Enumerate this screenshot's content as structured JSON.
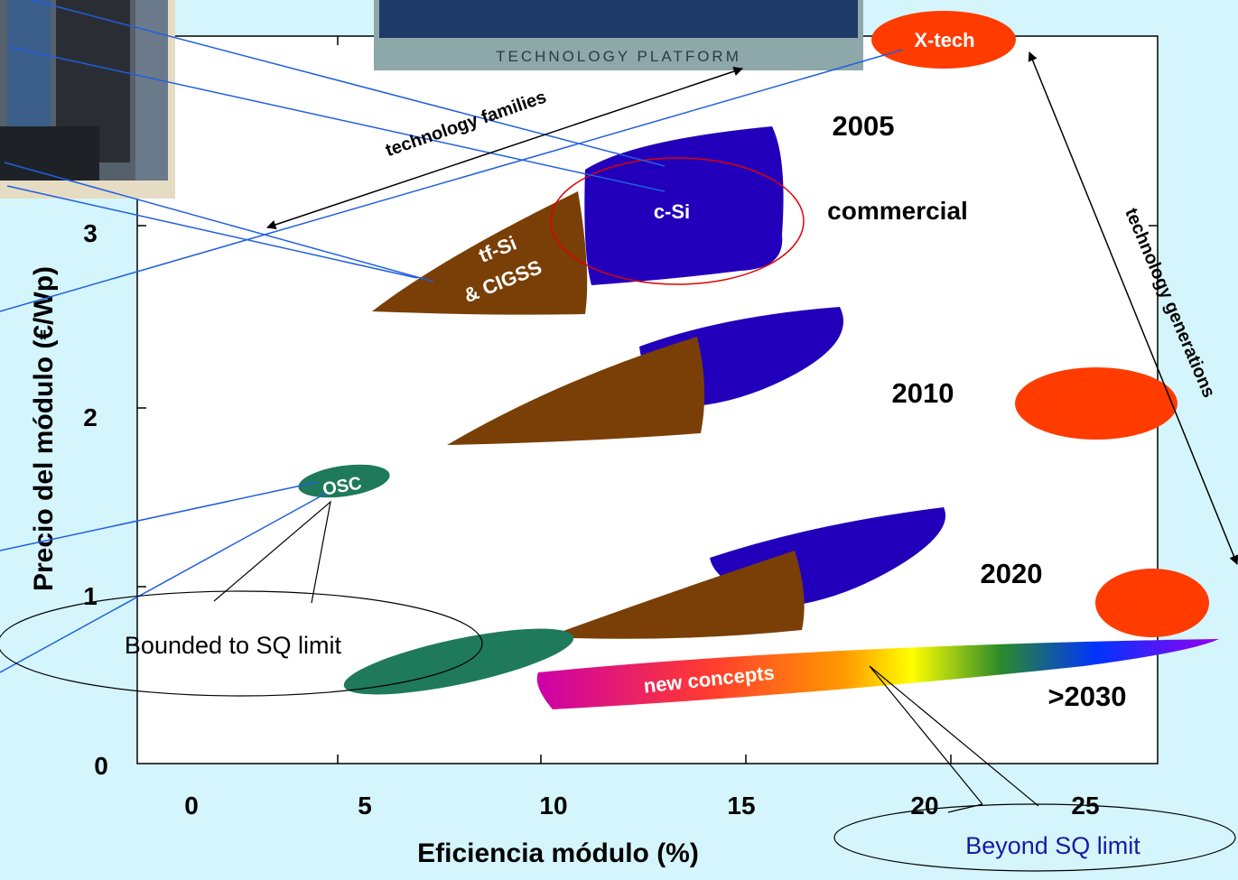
{
  "chart_data": {
    "type": "area",
    "xlabel": "Eficiencia módulo (%)",
    "ylabel": "Precio del módulo (€/Wp)",
    "x_ticks": [
      "0",
      "5",
      "10",
      "15",
      "20",
      "25"
    ],
    "y_ticks": [
      "0",
      "1",
      "2",
      "3"
    ],
    "xlim": [
      0,
      25
    ],
    "ylim": [
      0,
      4
    ],
    "regions": [
      {
        "label": "c-Si",
        "year": "2005",
        "x": [
          11,
          16
        ],
        "y": [
          2.7,
          3.55
        ],
        "color": "#2200bb"
      },
      {
        "label": "tf-Si & CIGSS",
        "year": "2005",
        "x": [
          5.7,
          11
        ],
        "y": [
          2.5,
          3.2
        ],
        "color": "#7a3f06"
      },
      {
        "label": "c-Si",
        "year": "2010",
        "x": [
          12,
          17.5
        ],
        "y": [
          2.0,
          2.6
        ],
        "color": "#2200bb"
      },
      {
        "label": "tf-Si & CIGSS",
        "year": "2010",
        "x": [
          7.5,
          14
        ],
        "y": [
          1.75,
          2.4
        ],
        "color": "#7a3f06"
      },
      {
        "label": "c-Si",
        "year": "2020",
        "x": [
          14,
          20
        ],
        "y": [
          0.9,
          1.45
        ],
        "color": "#2200bb"
      },
      {
        "label": "tf-Si & CIGSS",
        "year": "2020",
        "x": [
          10,
          16.5
        ],
        "y": [
          0.65,
          1.2
        ],
        "color": "#7a3f06"
      },
      {
        "label": "OSC",
        "year": "",
        "x": [
          4,
          6.5
        ],
        "y": [
          1.5,
          1.65
        ],
        "color": "#1e7a5a"
      },
      {
        "label": "OSC",
        "year": "2020",
        "x": [
          5,
          11
        ],
        "y": [
          0.45,
          0.75
        ],
        "color": "#1e7a5a"
      },
      {
        "label": "X-tech",
        "year": "2005",
        "x": [
          20.5,
          23
        ],
        "y": [
          3.9,
          4.1
        ],
        "color": "#ff3b00"
      },
      {
        "label": "X-tech",
        "year": "2010",
        "x": [
          21.5,
          25.5
        ],
        "y": [
          1.8,
          2.2
        ],
        "color": "#ff3b00"
      },
      {
        "label": "X-tech",
        "year": "2020",
        "x": [
          24.5,
          27
        ],
        "y": [
          0.7,
          1.1
        ],
        "color": "#ff3b00"
      },
      {
        "label": "new concepts",
        "year": ">2030",
        "x": [
          10,
          27
        ],
        "y": [
          0.35,
          0.7
        ],
        "color": "gradient"
      }
    ],
    "annotations": {
      "years": [
        "2005",
        "2010",
        "2020",
        ">2030"
      ],
      "commercial": "commercial",
      "families": "technology families",
      "generations": "technology generations",
      "bounded": "Bounded to SQ limit",
      "beyond": "Beyond SQ limit",
      "logo_sub": "TECHNOLOGY PLATFORM",
      "region_labels": {
        "csi": "c-Si",
        "tfsi_line1": "tf-Si",
        "tfsi_line2": "& CIGSS",
        "osc": "OSC",
        "xtech": "X-tech",
        "new": "new concepts"
      }
    }
  }
}
